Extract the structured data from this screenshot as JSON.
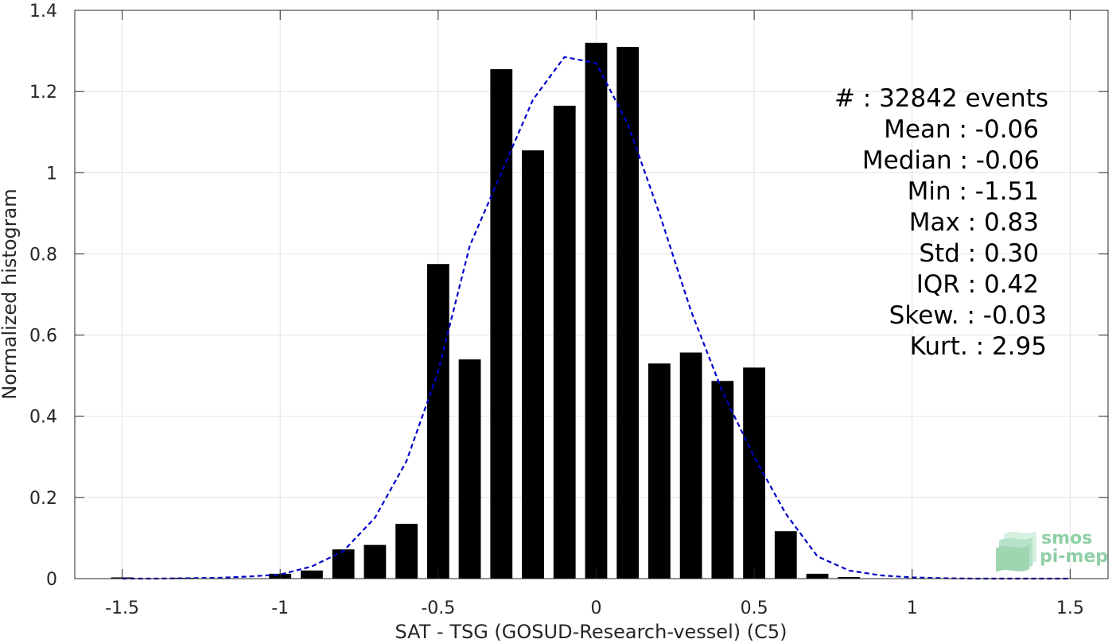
{
  "chart_data": {
    "type": "bar",
    "xlabel": "SAT - TSG (GOSUD-Research-vessel) (C5)",
    "ylabel": "Normalized histogram",
    "xlim": [
      -1.65,
      1.62
    ],
    "ylim": [
      0,
      1.4
    ],
    "xticks": [
      -1.5,
      -1,
      -0.5,
      0,
      0.5,
      1,
      1.5
    ],
    "xtick_labels": [
      "-1.5",
      "-1",
      "-0.5",
      "0",
      "0.5",
      "1",
      "1.5"
    ],
    "yticks": [
      0,
      0.2,
      0.4,
      0.6,
      0.8,
      1,
      1.2,
      1.4
    ],
    "ytick_labels": [
      "0",
      "0.2",
      "0.4",
      "0.6",
      "0.8",
      "1",
      "1.2",
      "1.4"
    ],
    "grid": true,
    "bar_width": 0.07,
    "bars": {
      "x": [
        -1.5,
        -1.3,
        -1.0,
        -0.9,
        -0.8,
        -0.7,
        -0.6,
        -0.5,
        -0.4,
        -0.3,
        -0.2,
        -0.1,
        0.0,
        0.1,
        0.2,
        0.3,
        0.4,
        0.5,
        0.6,
        0.7,
        0.8
      ],
      "values": [
        0.003,
        0.002,
        0.012,
        0.02,
        0.072,
        0.083,
        0.135,
        0.775,
        0.54,
        1.255,
        1.055,
        1.165,
        1.32,
        1.31,
        0.53,
        0.557,
        0.487,
        0.52,
        0.117,
        0.012,
        0.004
      ],
      "color": "#000000"
    },
    "fit_curve": {
      "style": "dashed",
      "color": "#0000cc",
      "x": [
        -1.5,
        -1.4,
        -1.3,
        -1.2,
        -1.1,
        -1.0,
        -0.9,
        -0.8,
        -0.7,
        -0.6,
        -0.5,
        -0.4,
        -0.3,
        -0.2,
        -0.1,
        0.0,
        0.1,
        0.2,
        0.3,
        0.4,
        0.5,
        0.6,
        0.7,
        0.8,
        0.9,
        1.0,
        1.1,
        1.2,
        1.3,
        1.4,
        1.5
      ],
      "values": [
        0.0,
        0.0,
        0.001,
        0.002,
        0.005,
        0.01,
        0.03,
        0.068,
        0.15,
        0.29,
        0.51,
        0.82,
        1.0,
        1.18,
        1.285,
        1.27,
        1.12,
        0.9,
        0.66,
        0.46,
        0.3,
        0.16,
        0.055,
        0.02,
        0.008,
        0.003,
        0.001,
        0.0,
        0.0,
        0.0,
        0.0
      ]
    },
    "stats": [
      "#  : 32842 events",
      "Mean : -0.06",
      "Median : -0.06",
      "Min : -1.51",
      "Max : 0.83",
      "Std : 0.30",
      "IQR : 0.42",
      "Skew. : -0.03",
      "Kurt. : 2.95"
    ]
  },
  "logo": {
    "line1": "smos",
    "line2": "pi-mep",
    "color": "#8fcfa5"
  }
}
